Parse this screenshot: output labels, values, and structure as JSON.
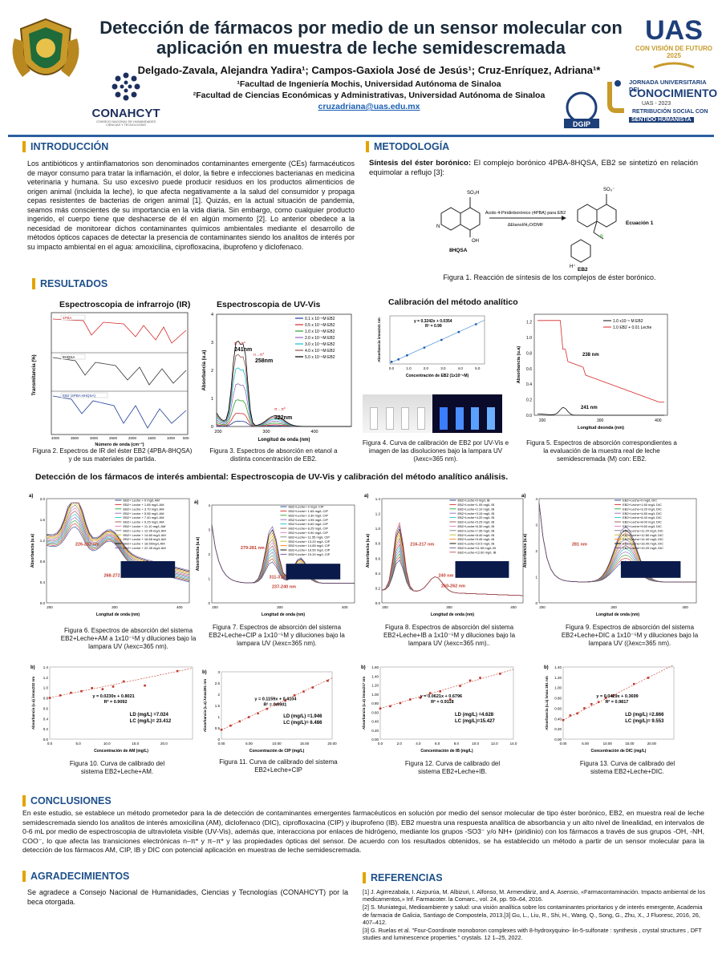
{
  "header": {
    "title": "Detección de fármacos por medio de un sensor molecular con aplicación en muestra de leche semidescremada",
    "authors": "Delgado-Zavala, Alejandra Yadira¹; Campos-Gaxiola José de Jesús¹; Cruz-Enríquez, Adriana¹*",
    "aff1": "¹Facultad de Ingeniería Mochis, Universidad Autónoma de Sinaloa",
    "aff2": "²Facultad de Ciencias Económicas y Administrativas, Universidad Autónoma de Sinaloa",
    "email": "cruzadriana@uas.edu.mx",
    "logos": {
      "conahcyt": "CONAHCYT",
      "conahcyt_sub": "CONSEJO NACIONAL DE HUMANIDADES CIENCIAS Y TECNOLOGÍAS",
      "uas": "UAS",
      "uas_sub": "CON VISIÓN DE FUTURO 2025",
      "jornada_1": "JORNADA UNIVERSITARIA DEL",
      "jornada_2": "CONOCIMIENTO",
      "jornada_3": "UAS - 2023",
      "jornada_4": "RETRIBUCIÓN SOCIAL CON",
      "jornada_5": "SENTIDO HUMANISTA",
      "dgip": "DGIP"
    }
  },
  "intro": {
    "heading": "INTRODUCCIÓN",
    "text": "Los antibióticos y antiinflamatorios son denominados contaminantes emergente (CEs) farmacéuticos de mayor consumo para tratar la inflamación, el dolor, la fiebre e infecciones bacterianas en medicina veterinaria y humana. Su uso excesivo puede producir residuos en los productos alimenticios de origen animal (incluida la leche), lo que afecta negativamente a la salud del consumidor y propaga cepas resistentes de bacterias de origen animal [1]. Quizás, en la actual situación de pandemia, seamos más conscientes de su importancia en la vida diaria. Sin embargo, como cualquier producto ingerido, el cuerpo tiene que deshacerse de él en algún momento [2]. Lo anterior obedece a la necesidad de monitorear dichos contaminantes químicos ambientales mediante el desarrollo de métodos ópticos capaces de detectar la presencia de contaminantes siendo los analitos de interés por su impacto ambiental en el agua: amoxicilina, ciprofloxacina, ibuprofeno y diclofenaco."
  },
  "metodologia": {
    "heading": "METODOLOGÍA",
    "subhead": "Síntesis del éster borónico:",
    "text": "El complejo borónico 4PBA-8HQSA, EB2 se sintetizó en relación equimolar a reflujo [3]:",
    "reaction_top": "Ácido 4-Piridinborónico (4PBA) para EB2",
    "reaction_bottom": "ΔEtanol/H₂O/DMF",
    "eq_label": "Ecuación 1",
    "left_mol": "8HQSA",
    "right_mol": "EB2",
    "fig1": "Figura 1. Reacción de síntesis de los complejos de éster borónico."
  },
  "resultados": {
    "heading": "RESULTADOS",
    "ir_title": "Espectroscopia de infrarrojo (IR)",
    "uv_title": "Espectroscopia de UV-Vis",
    "cal_title": "Calibración del método analítico",
    "fig2": "Figura 2. Espectros de IR del éster EB2 (4PBA-8HQSA) y de sus materiales de partida.",
    "fig3": "Figura 3. Espectros de absorción en etanol a distinta concentración de EB2.",
    "fig4": "Figura 4. Curva de calibración de EB2 por UV-Vis e imagen de las disoluciones bajo la lampara UV (λexc=365 nm).",
    "fig5": "Figura 5. Espectros de absorción correspondientes a la evaluación de la muestra real de leche semidescremada (M) con: EB2.",
    "detect_title": "Detección de los fármacos de interés ambiental: Espectroscopia de UV-Vis y calibración del método analítico análisis.",
    "fig6": "Figura 6. Espectros de absorción del sistema EB2+Leche+AM a 1x10⁻⁵M y diluciones bajo la lampara UV (λexc=365 nm).",
    "fig7": "Figura 7. Espectros de absorción del sistema EB2+Leche+CIP a 1x10⁻⁵M y diluciones bajo la lampara UV (λexc=365 nm).",
    "fig8": "Figura 8. Espectros de absorción del sistema EB2+Leche+IB a 1x10⁻⁵M y diluciones bajo la lampara UV (λexc=365 nm)..",
    "fig9": "Figura 9. Espectros de absorción del sistema EB2+Leche+DIC a 1x10⁻⁵M y diluciones bajo la lampara UV ((λexc=365 nm).",
    "fig10": "Figura 10. Curva de calibrado del sistema EB2+Leche+AM.",
    "fig11": "Figura 11. Curva de calibrado del sistema EB2+Leche+CIP",
    "fig12": "Figura 12. Curva de calibrado del sistema EB2+Leche+IB.",
    "fig13": "Figura 13. Curva de calibrado del sistema EB2+Leche+DIC."
  },
  "conclusiones": {
    "heading": "CONCLUSIONES",
    "text": "En este estudio, se establece un método prometedor para la de detección de contaminantes emergentes farmacéuticos en solución por medio del sensor molecular de tipo éster borónico, EB2, en muestra real de leche semidescremada siendo los analitos de interés amoxicilina (AM), diclofenaco (DIC), ciprofloxacina (CIP) y ibuprofeno (IB). EB2 muestra una respuesta analítica de absorbancia y un alto nivel de linealidad, en intervalos de 0-6 mL por medio de espectroscopia de ultravioleta visible (UV-Vis), además que, interacciona por enlaces de hidrógeno, mediante los grupos -SO3⁻ y/o NH+ (piridinio) con los fármacos a través de sus grupos -OH, -NH, COO⁻, lo que afecta las transiciones electrónicas n–π* y π–π* y las propiedades ópticas del sensor. De acuerdo con los resultados obtenidos, se ha establecido un método a partir de un sensor molecular para la detección de los fármacos AM, CIP, IB y DIC con potencial aplicación en muestras de leche semidescremada."
  },
  "agradecimientos": {
    "heading": "AGRADECIMIENTOS",
    "text": "Se agradece a Consejo Nacional de Humanidades, Ciencias y Tecnologías (CONAHCYT) por la beca otorgada."
  },
  "referencias": {
    "heading": "REFERENCIAS",
    "items": [
      "[1] J. Agirrezabala, I. Aizpurúa, M. Albizuri, I. Alfonso, M. Armendáriz, and A. Asensio, «Farmacontaminación. Impacto ambiental de los medicamentos,» Inf. Farmacoter. la Comarc., vol. 24, pp. 59–64, 2016.",
      "[2] S. Muniategui, Medioambiente y salud: una visión analítica sobre los contaminantes prioritarios y de interés emergente, Academia de farmacia de Galicia, Santiago de Compostela, 2013.[3] Gu, L., Liu, R., Shi, H., Wang, Q., Song, G., Zhu, X., J Fluoresc, 2016, 26, 407–412.",
      "[3] G. Ruelas et al. \"Four-Coordinate monoboron complexes with 8-hydroxyquino- lin-5-sulfonate : synthesis , crystal structures , DFT studies and luminescence properties.\" crystals. 12 1–25, 2022."
    ]
  },
  "charts": {
    "ir": {
      "xlabel": "Número de onda (cm⁻¹)",
      "ylabel": "Transmitancia (%)",
      "labels": [
        "4PBA",
        "8HQSA",
        "EB2 (4PBA-8HQSA)"
      ],
      "xticks": [
        "4000",
        "3500",
        "3000",
        "2500",
        "2000",
        "1500",
        "1000",
        "500"
      ]
    },
    "uv": {
      "xlabel": "Longitud de onda (nm)",
      "ylabel": "Absorbancia (u.a)",
      "legend": [
        "0.1 x 10⁻⁵M EB2",
        "0.5 x 10⁻⁵M EB2",
        "1.0 x 10⁻⁵M EB2",
        "2.0 x 10⁻⁵M EB2",
        "3.0 x 10⁻⁵M EB2",
        "4.0 x 10⁻⁵M EB2",
        "5.0 x 10⁻⁵M EB2"
      ],
      "colors": [
        "#1f3f99",
        "#d62728",
        "#2ca02c",
        "#9467bd",
        "#17becf",
        "#8c564b",
        "#000000"
      ],
      "peaks": [
        "241nm",
        "258nm",
        "322nm"
      ],
      "trans": [
        "π→π*",
        "n→π*",
        "π→π*"
      ],
      "xticks": [
        "200",
        "300",
        "400"
      ],
      "yticks": [
        "0",
        "1",
        "2",
        "3",
        "4"
      ]
    },
    "cal": {
      "eq": "y = 0.3242x + 0.0354",
      "r2": "R² = 0.99",
      "xlabel": "Concentración de EB2 (1x10⁻⁵M)",
      "ylabel": "Absorbancia λmax241 nm",
      "xticks": [
        "0.0",
        "1.0",
        "2.0",
        "3.0",
        "4.0",
        "5.0"
      ]
    },
    "milk": {
      "legend": [
        "1.0 x10⁻⁵ M EB2",
        "1.0 EB2 + 0.01 Leche"
      ],
      "peaks": [
        "238 nm",
        "241 nm"
      ],
      "xlabel": "Longitud deonda (nm)",
      "ylabel": "Absorbancia (u.a)",
      "xticks": [
        "200",
        "300",
        "400"
      ],
      "yticks": [
        "0.0",
        "0.2",
        "0.4",
        "0.6",
        "0.8",
        "1.0",
        "1.2"
      ]
    },
    "spectra": [
      {
        "panel": "a)",
        "legend": [
          "EB2+ Leche + 0 mg/L AM",
          "EB2+ Leche + 1.85 mg/L AM",
          "EB2+ Leche + 3.70 mg/L AM",
          "EB2+ Leche + 5.55 mg/L AM",
          "EB2+ Leche + 7.40 mg/L AM",
          "EB2+ Leche + 9.25 mg/L AM",
          "EB2+ Leche + 11.10 mg/L AM",
          "EB2+ Leche + 12.95 mg/L AM",
          "EB2+ Leche + 14.80 mg/L AM",
          "EB2+ Leche + 16.65 mg/L AM",
          "EB2+ Leche + 18.50mg/L AM",
          "EB2+ Leche + 22.35 mg/L AM"
        ],
        "peaks": [
          "226-232 nm",
          "268-272 nm"
        ],
        "xticks": [
          "200",
          "300",
          "400"
        ],
        "yticks": [
          "0.0",
          "0.4",
          "0.8",
          "1.2",
          "1.6",
          "2.0"
        ]
      },
      {
        "panel": "a)",
        "legend": [
          "EB2+Leche+ 0 mg/L CIP",
          "EB2+Leche+ 1.65 mg/L CIP",
          "EB2+Leche+ 3.30 mg/L CIP",
          "EB2+Leche+ 4.95 mg/L CIP",
          "EB2+Leche+ 6.60 mg/L CIP",
          "EB2+Leche+ 8.25 mg/L CIP",
          "EB2+Leche+ 9.90 mg/L CIP",
          "EB2+Leche+ 11.55 mg/L CIP",
          "EB2+Leche+ 13.20 mg/L CIP",
          "EB2+Leche+ 14.85 mg/L CIP",
          "EB2+Leche+ 16.50 mg/L CIP",
          "EB2+Leche+ 19.20 mg/L CIP"
        ],
        "peaks": [
          "279-281 nm",
          "311-318 nm",
          "237-240 nm"
        ],
        "xticks": [
          "200",
          "300",
          "400"
        ],
        "yticks": [
          "0",
          "1",
          "2",
          "3",
          "4"
        ]
      },
      {
        "panel": "a)",
        "legend": [
          "EB2+Leche+0 mg/L IB",
          "EB2+Leche+1.05 mg/L IB",
          "EB2+Leche+2.10 mg/L IB",
          "EB2+Leche+3.15 mg/L IB",
          "EB2+Leche+4.20 mg/L IB",
          "EB2+Leche+5.25 mg/L IB",
          "EB2+Leche+6.30 mg/L IB",
          "EB2+Leche+7.35 mg/L IB",
          "EB2+Leche+8.40 mg/L IB",
          "EB2+Leche+9.45 mg/L IB",
          "EB2+Leche+10.5 mg/L IB",
          "EB2+Leche+11.55 mg/L IB",
          "EB2+Leche+12.60 mg/L IB"
        ],
        "peaks": [
          "216-217 nm",
          "240 nm",
          "260-262 nm"
        ],
        "xticks": [
          "200",
          "300",
          "400"
        ],
        "yticks": [
          "0.0",
          "0.2",
          "0.4",
          "0.6",
          "0.8",
          "1.0",
          "1.2",
          "1.4"
        ]
      },
      {
        "panel": "a)",
        "legend": [
          "EB2+Leche+0 mg/L DIC",
          "EB2+Leche+1.60 mg/L DIC",
          "EB2+Leche+3.20 mg/L DIC",
          "EB2+Leche+4.80 mg/L DIC",
          "EB2+Leche+6.40 mg/L DIC",
          "EB2+Leche+8.00 mg/L DIC",
          "EB2+Leche+9.60 mg/L DIC",
          "EB2+Leche+11.20 mg/L DIC",
          "EB2+Leche+12.80 mg/L DIC",
          "EB2+Leche+14.40 mg/L DIC",
          "EB2+Leche+16.00 mg/L DIC",
          "EB2+Leche+19.20 mg/L DIC"
        ],
        "peaks": [
          "281 nm"
        ],
        "xticks": [
          "200",
          "300",
          "400"
        ],
        "yticks": [
          "0",
          "1",
          "2",
          "3",
          "4"
        ]
      }
    ],
    "calibrations": [
      {
        "panel": "b)",
        "eq": "y = 0.0230x + 0.8021",
        "r2": "R² = 0.9092",
        "ld": "LD (mg/L) =7.024",
        "lc": "LC (mg/L)= 23.412",
        "xlabel": "Concentración de AM (mg/L)",
        "ylabel": "Absorbancia (u.a) λmax232 nm",
        "xticks": [
          "0.0",
          "5.0",
          "10.0",
          "15.0",
          "20.0"
        ],
        "yticks": [
          "0.0",
          "0.2",
          "0.4",
          "0.6",
          "0.8",
          "1.0",
          "1.2",
          "1.4"
        ],
        "xmax": 25,
        "ymax": 1.4,
        "m": 0.023,
        "b": 0.8021,
        "pts": [
          [
            0,
            0.8
          ],
          [
            1.85,
            0.85
          ],
          [
            3.7,
            0.9
          ],
          [
            5.55,
            0.93
          ],
          [
            7.4,
            0.99
          ],
          [
            9.25,
            0.97
          ],
          [
            11.1,
            1.02
          ],
          [
            12.95,
            1.12
          ],
          [
            16.65,
            1.04
          ],
          [
            22.35,
            1.32
          ]
        ]
      },
      {
        "panel": "b)",
        "eq": "y = 0.1159x + 0.4104",
        "r2": "R² = 0.9901",
        "ld": "LD (mg/L) =1.946",
        "lc": "LC (mg/L)= 6.486",
        "xlabel": "Concentración de CIP (mg/L)",
        "ylabel": "Absorbancia (u.a) λmax281 nm",
        "xticks": [
          "0.00",
          "5.00",
          "10.00",
          "15.00",
          "20.00"
        ],
        "yticks": [
          "0",
          "0.5",
          "1",
          "1.5",
          "2",
          "2.5",
          "3"
        ],
        "xmax": 20,
        "ymax": 3,
        "m": 0.1159,
        "b": 0.4104,
        "pts": [
          [
            0,
            0.42
          ],
          [
            1.65,
            0.6
          ],
          [
            3.3,
            0.79
          ],
          [
            4.95,
            0.98
          ],
          [
            6.6,
            1.15
          ],
          [
            8.25,
            1.35
          ],
          [
            9.9,
            1.55
          ],
          [
            11.55,
            1.72
          ],
          [
            13.2,
            1.95
          ],
          [
            14.85,
            2.12
          ],
          [
            16.5,
            2.3
          ],
          [
            19.2,
            2.6
          ]
        ]
      },
      {
        "panel": "b)",
        "eq": "y = 0.0621x + 0.6796",
        "r2": "R² = 0.9118",
        "ld": "LD (mg/L) =4.628",
        "lc": "LC (mg/L)=15.427",
        "xlabel": "Concentración de IB (mg/L)",
        "ylabel": "Absorbancia (u.a) λmax217 nm",
        "xticks": [
          "0.0",
          "2.0",
          "4.0",
          "6.0",
          "8.0",
          "10.0",
          "12.0",
          "14.0"
        ],
        "yticks": [
          "0.00",
          "0.20",
          "0.40",
          "0.60",
          "0.80",
          "1.00",
          "1.20",
          "1.40",
          "1.60"
        ],
        "xmax": 14,
        "ymax": 1.6,
        "m": 0.0621,
        "b": 0.6796,
        "pts": [
          [
            0,
            0.68
          ],
          [
            1.05,
            0.73
          ],
          [
            2.1,
            0.8
          ],
          [
            3.15,
            0.88
          ],
          [
            4.2,
            0.92
          ],
          [
            5.25,
            1.02
          ],
          [
            6.3,
            1.06
          ],
          [
            7.35,
            0.88
          ],
          [
            8.4,
            1.18
          ],
          [
            9.45,
            1.3
          ],
          [
            10.5,
            1.36
          ],
          [
            12.6,
            1.45
          ]
        ]
      },
      {
        "panel": "b)",
        "eq": "y = 0.0429x + 0.3699",
        "r2": "R² = 0.9817",
        "ld": "LD (mg/L) =2.866",
        "lc": "LC (mg/L)= 9.553",
        "xlabel": "Concentración de DIC (mg/L)",
        "ylabel": "Absorbancia (u.a) λmax 281 nm",
        "xticks": [
          "0.00",
          "5.00",
          "10.00",
          "15.00",
          "20.00"
        ],
        "yticks": [
          "0.00",
          "0.20",
          "0.40",
          "0.60",
          "0.80",
          "1.00",
          "1.20",
          "1.40"
        ],
        "xmax": 25,
        "ymax": 1.4,
        "m": 0.0429,
        "b": 0.3699,
        "pts": [
          [
            0,
            0.37
          ],
          [
            1.6,
            0.46
          ],
          [
            3.2,
            0.5
          ],
          [
            4.8,
            0.6
          ],
          [
            6.4,
            0.68
          ],
          [
            8.0,
            0.72
          ],
          [
            9.6,
            0.8
          ],
          [
            11.2,
            0.84
          ],
          [
            16.0,
            1.07
          ],
          [
            19.2,
            1.19
          ]
        ]
      }
    ]
  },
  "chart_data": [
    {
      "type": "line",
      "title": "Espectroscopia de UV-Vis",
      "xlabel": "Longitud de onda (nm)",
      "ylabel": "Absorbancia (u.a)",
      "xlim": [
        200,
        480
      ],
      "ylim": [
        0,
        4
      ],
      "series_names": [
        "0.1 x 10⁻⁵M EB2",
        "0.5 x 10⁻⁵M EB2",
        "1.0 x 10⁻⁵M EB2",
        "2.0 x 10⁻⁵M EB2",
        "3.0 x 10⁻⁵M EB2",
        "4.0 x 10⁻⁵M EB2",
        "5.0 x 10⁻⁵M EB2"
      ],
      "peak_positions_nm": [
        241,
        258,
        322
      ]
    },
    {
      "type": "scatter",
      "title": "Calibración del método analítico",
      "x": [
        0.1,
        0.5,
        1.0,
        2.0,
        3.0,
        4.0,
        5.0
      ],
      "y": [
        0.09,
        0.19,
        0.36,
        0.68,
        1.0,
        1.33,
        1.65
      ],
      "fit": "y = 0.3242x + 0.0354",
      "xlabel": "Concentración de EB2 (1x10⁻⁵M)",
      "ylabel": "Absorbancia λmax241 nm"
    },
    {
      "type": "scatter",
      "title": "Figura 10",
      "x": [
        0,
        1.85,
        3.7,
        5.55,
        7.4,
        9.25,
        11.1,
        12.95,
        16.65,
        22.35
      ],
      "y": [
        0.8,
        0.85,
        0.9,
        0.93,
        0.99,
        0.97,
        1.02,
        1.12,
        1.04,
        1.32
      ],
      "fit": "y = 0.0230x + 0.8021"
    },
    {
      "type": "scatter",
      "title": "Figura 11",
      "x": [
        0,
        1.65,
        3.3,
        4.95,
        6.6,
        8.25,
        9.9,
        11.55,
        13.2,
        14.85,
        16.5,
        19.2
      ],
      "y": [
        0.42,
        0.6,
        0.79,
        0.98,
        1.15,
        1.35,
        1.55,
        1.72,
        1.95,
        2.12,
        2.3,
        2.6
      ],
      "fit": "y = 0.1159x + 0.4104"
    },
    {
      "type": "scatter",
      "title": "Figura 12",
      "x": [
        0,
        1.05,
        2.1,
        3.15,
        4.2,
        5.25,
        6.3,
        7.35,
        8.4,
        9.45,
        10.5,
        12.6
      ],
      "y": [
        0.68,
        0.73,
        0.8,
        0.88,
        0.92,
        1.02,
        1.06,
        0.88,
        1.18,
        1.3,
        1.36,
        1.45
      ],
      "fit": "y = 0.0621x + 0.6796"
    },
    {
      "type": "scatter",
      "title": "Figura 13",
      "x": [
        0,
        1.6,
        3.2,
        4.8,
        6.4,
        8.0,
        9.6,
        11.2,
        16.0,
        19.2
      ],
      "y": [
        0.37,
        0.46,
        0.5,
        0.6,
        0.68,
        0.72,
        0.8,
        0.84,
        1.07,
        1.19
      ],
      "fit": "y = 0.0429x + 0.3699"
    }
  ]
}
